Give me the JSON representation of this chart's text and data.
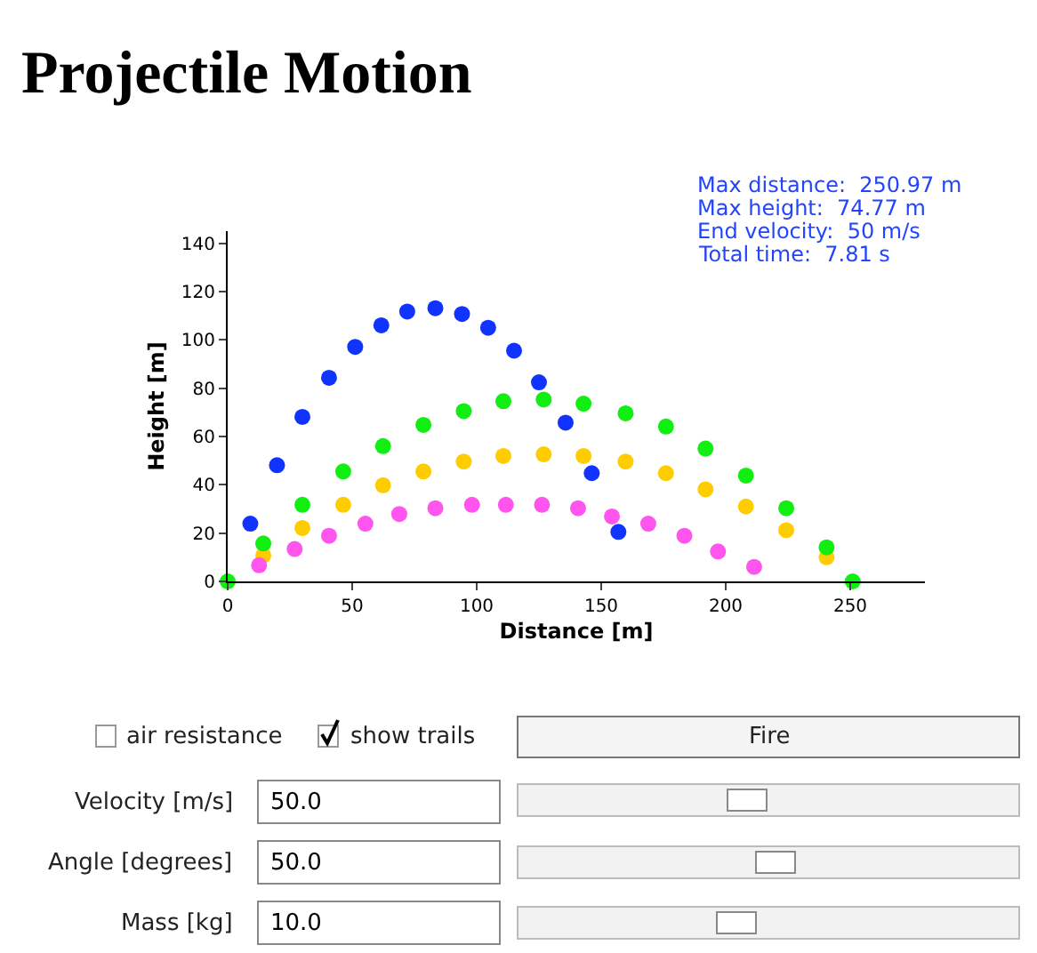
{
  "chart_data": {
    "type": "scatter",
    "title": "Projectile Motion",
    "xlabel": "Distance [m]",
    "ylabel": "Height [m]",
    "xlim": [
      0,
      280
    ],
    "xticks": [
      0,
      50,
      100,
      150,
      200,
      250
    ],
    "ylim": [
      0,
      145
    ],
    "yticks": [
      0,
      20,
      40,
      60,
      80,
      100,
      120,
      140
    ],
    "marker": "circle",
    "series": [
      {
        "color": "#1133ff",
        "x": [
          9.1,
          19.8,
          30,
          40.7,
          51.2,
          61.7,
          72.1,
          83.4,
          94.1,
          104.6,
          115,
          125,
          135.7,
          146.2,
          156.9
        ],
        "values": [
          23.9,
          48.1,
          68.1,
          84.3,
          97.1,
          106,
          111.7,
          113.1,
          110.7,
          105,
          95.5,
          82.4,
          65.7,
          44.8,
          20.5
        ]
      },
      {
        "color": "#ffcc00",
        "x": [
          14.3,
          30,
          46.4,
          62.4,
          78.6,
          94.8,
          110.7,
          126.9,
          142.9,
          159.8,
          176,
          191.9,
          208.1,
          224.3,
          240.5
        ],
        "values": [
          10.7,
          22.1,
          31.7,
          39.8,
          45.5,
          49.6,
          51.9,
          52.6,
          51.9,
          49.6,
          44.8,
          38.1,
          31,
          21.2,
          10
        ]
      },
      {
        "color": "#ff55ee",
        "x": [
          12.6,
          26.9,
          40.7,
          55.3,
          68.9,
          83.4,
          98.1,
          111.7,
          126.2,
          140.7,
          154.3,
          168.9,
          183.4,
          196.9,
          211.4
        ],
        "values": [
          6.7,
          13.4,
          18.9,
          23.9,
          27.9,
          30.3,
          31.7,
          31.7,
          31.7,
          30.3,
          26.9,
          23.9,
          18.9,
          12.4,
          6
        ]
      },
      {
        "color": "#11ee11",
        "x": [
          0,
          14.3,
          30,
          46.4,
          62.4,
          78.6,
          94.8,
          110.7,
          126.9,
          142.9,
          159.8,
          176,
          191.9,
          208.1,
          224.3,
          240.5,
          251
        ],
        "values": [
          0,
          15.7,
          31.7,
          45.5,
          56,
          64.8,
          70.5,
          74.6,
          75.3,
          73.6,
          69.6,
          64.1,
          55,
          43.8,
          30.3,
          14.1,
          0
        ]
      }
    ],
    "annotations": [
      "Max distance:  250.97 m",
      "Max height:  74.77 m",
      "End velocity:  50 m/s",
      "Total time:  7.81 s",
      "air resistance",
      "show trails",
      "Fire",
      "Velocity [m/s]",
      "50.0",
      "Angle [degrees]",
      "50.0",
      "Mass [kg]",
      "10.0"
    ]
  }
}
